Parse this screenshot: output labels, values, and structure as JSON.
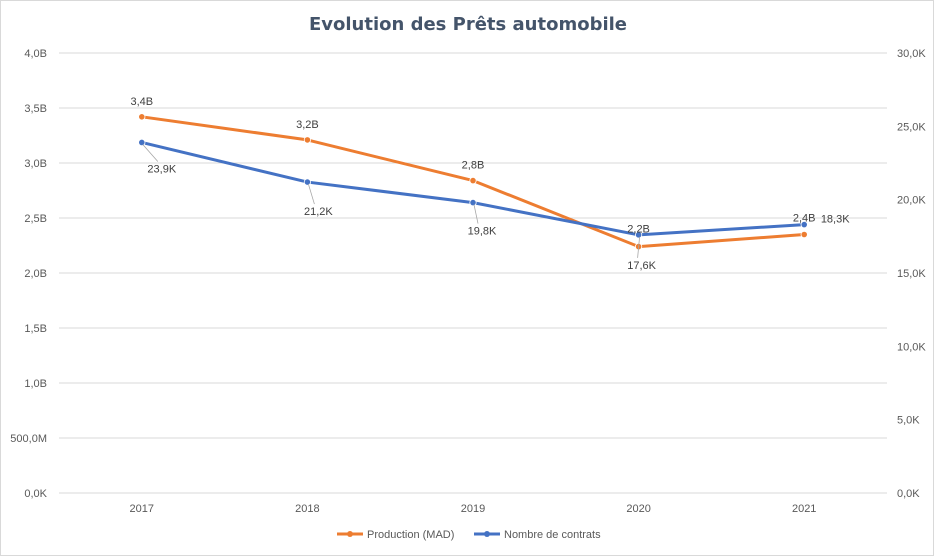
{
  "chart_data": {
    "type": "line",
    "title": "Evolution  des Prêts automobile",
    "categories": [
      "2017",
      "2018",
      "2019",
      "2020",
      "2021"
    ],
    "series": [
      {
        "name": "Production (MAD)",
        "axis": "left",
        "color": "#ed7d31",
        "values": [
          3.42,
          3.21,
          2.84,
          2.24,
          2.35
        ],
        "labels": [
          "3,4B",
          "3,2B",
          "2,8B",
          "2,2B",
          "2,4B"
        ]
      },
      {
        "name": "Nombre de contrats",
        "axis": "right",
        "color": "#4472c4",
        "values": [
          23.9,
          21.2,
          19.8,
          17.6,
          18.3
        ],
        "labels": [
          "23,9K",
          "21,2K",
          "19,8K",
          "17,6K",
          "18,3K"
        ]
      }
    ],
    "y_left": {
      "range": [
        0,
        4
      ],
      "ticks": [
        0,
        0.5,
        1,
        1.5,
        2,
        2.5,
        3,
        3.5,
        4
      ],
      "tick_labels": [
        "0,0K",
        "500,0M",
        "1,0B",
        "1,5B",
        "2,0B",
        "2,5B",
        "3,0B",
        "3,5B",
        "4,0B"
      ]
    },
    "y_right": {
      "range": [
        0,
        30
      ],
      "ticks": [
        0,
        5,
        10,
        15,
        20,
        25,
        30
      ],
      "tick_labels": [
        "0,0K",
        "5,0K",
        "10,0K",
        "15,0K",
        "20,0K",
        "25,0K",
        "30,0K"
      ]
    },
    "grid": true,
    "legend_position": "bottom"
  }
}
